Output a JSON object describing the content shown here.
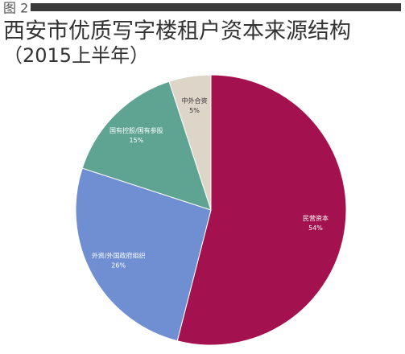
{
  "chart_data": {
    "type": "pie",
    "figure_label": "图 2",
    "title": "西安市优质写字楼租户资本来源结构",
    "subtitle": "（2015上半年）",
    "categories": [
      "民营资本",
      "外资/外国政府组织",
      "国有控股/国有参股",
      "中外合资"
    ],
    "values": [
      54,
      26,
      15,
      5
    ],
    "value_labels": [
      "54%",
      "26%",
      "15%",
      "5%"
    ],
    "colors": [
      "#a3114f",
      "#6f8fd2",
      "#5fa393",
      "#ddd5c7"
    ]
  }
}
